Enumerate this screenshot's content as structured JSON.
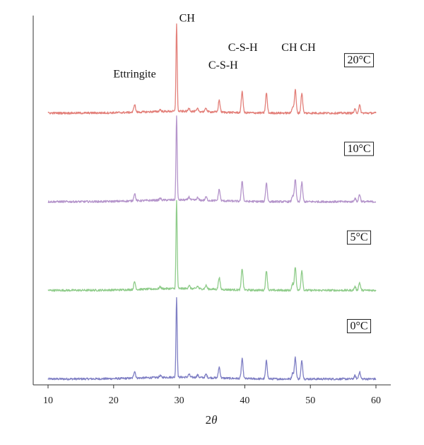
{
  "chart_data": {
    "type": "line",
    "title": "",
    "xlabel_base": "2",
    "xlabel_symbol": "θ",
    "ylabel": "",
    "xlim": [
      10,
      60
    ],
    "ylim": [
      0,
      125
    ],
    "xticks": [
      10,
      20,
      30,
      40,
      50,
      60
    ],
    "xtick_labels": [
      "10",
      "20",
      "30",
      "40",
      "50",
      "60"
    ],
    "grid": false,
    "peaks": [
      {
        "x": 23.2,
        "h": 2.4
      },
      {
        "x": 27.1,
        "h": 0.6
      },
      {
        "x": 29.6,
        "h": 27
      },
      {
        "x": 31.5,
        "h": 1.0
      },
      {
        "x": 32.8,
        "h": 0.8
      },
      {
        "x": 34.1,
        "h": 1.1
      },
      {
        "x": 36.1,
        "h": 3.7
      },
      {
        "x": 39.6,
        "h": 6.6
      },
      {
        "x": 43.3,
        "h": 6.1
      },
      {
        "x": 47.3,
        "h": 2.0
      },
      {
        "x": 47.7,
        "h": 7.2
      },
      {
        "x": 48.7,
        "h": 6.2
      },
      {
        "x": 56.8,
        "h": 1.1
      },
      {
        "x": 57.5,
        "h": 2.4
      }
    ],
    "series": [
      {
        "label": "0°C",
        "color": "#7f7fc4",
        "offset": 2,
        "scale": 1.0
      },
      {
        "label": "5°C",
        "color": "#8fcc8a",
        "offset": 32,
        "scale": 1.1
      },
      {
        "label": "10°C",
        "color": "#b595cb",
        "offset": 62,
        "scale": 1.05
      },
      {
        "label": "20°C",
        "color": "#e3807a",
        "offset": 92,
        "scale": 1.1
      }
    ],
    "annotations": [
      {
        "text": "Ettringite",
        "x": 23.2,
        "y": 104
      },
      {
        "text": "CH",
        "x": 31.2,
        "y": 123
      },
      {
        "text": "C-S-H",
        "x": 36.7,
        "y": 107
      },
      {
        "text": "C-S-H",
        "x": 39.7,
        "y": 113
      },
      {
        "text": "CH CH",
        "x": 48.2,
        "y": 113
      }
    ]
  }
}
